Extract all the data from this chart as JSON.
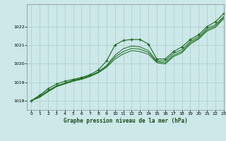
{
  "title": "Graphe pression niveau de la mer (hPa)",
  "bg_color": "#cce8e8",
  "grid_color": "#aacccc",
  "line_color": "#1a6b1a",
  "xlim": [
    -0.5,
    23
  ],
  "ylim": [
    1017.5,
    1023.2
  ],
  "yticks": [
    1018,
    1019,
    1020,
    1021,
    1022
  ],
  "xticks": [
    0,
    1,
    2,
    3,
    4,
    5,
    6,
    7,
    8,
    9,
    10,
    11,
    12,
    13,
    14,
    15,
    16,
    17,
    18,
    19,
    20,
    21,
    22,
    23
  ],
  "curve1": [
    1018.0,
    1018.3,
    1018.65,
    1018.9,
    1019.05,
    1019.15,
    1019.25,
    1019.4,
    1019.65,
    1020.15,
    1021.0,
    1021.25,
    1021.3,
    1021.3,
    1021.05,
    1020.25,
    1020.25,
    1020.65,
    1020.9,
    1021.3,
    1021.55,
    1022.0,
    1022.25,
    1022.7
  ],
  "curve2": [
    1018.0,
    1018.25,
    1018.55,
    1018.8,
    1018.95,
    1019.1,
    1019.2,
    1019.35,
    1019.55,
    1019.9,
    1020.45,
    1020.8,
    1020.95,
    1020.9,
    1020.7,
    1020.15,
    1020.15,
    1020.55,
    1020.75,
    1021.2,
    1021.45,
    1021.9,
    1022.1,
    1022.55
  ],
  "curve3": [
    1018.0,
    1018.2,
    1018.5,
    1018.78,
    1018.93,
    1019.08,
    1019.18,
    1019.33,
    1019.53,
    1019.85,
    1020.35,
    1020.65,
    1020.82,
    1020.78,
    1020.6,
    1020.1,
    1020.05,
    1020.45,
    1020.65,
    1021.12,
    1021.38,
    1021.82,
    1022.02,
    1022.48
  ],
  "curve4": [
    1018.0,
    1018.18,
    1018.48,
    1018.75,
    1018.9,
    1019.05,
    1019.15,
    1019.3,
    1019.5,
    1019.8,
    1020.25,
    1020.52,
    1020.7,
    1020.65,
    1020.5,
    1020.05,
    1019.98,
    1020.38,
    1020.58,
    1021.05,
    1021.32,
    1021.75,
    1021.95,
    1022.42
  ]
}
